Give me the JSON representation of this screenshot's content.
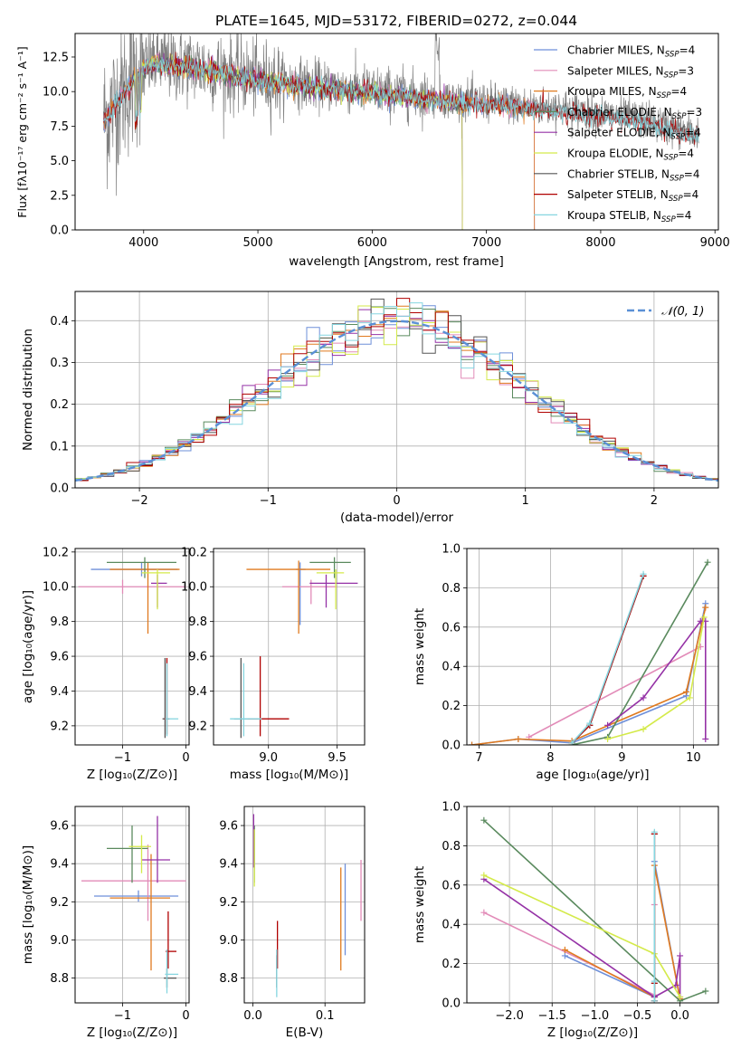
{
  "colors": {
    "chabrier_miles": "#6e8fd9",
    "salpeter_miles": "#e28bb8",
    "kroupa_miles": "#e07a1f",
    "chabrier_elodie": "#5a8a5e",
    "salpeter_elodie": "#9532a6",
    "kroupa_elodie": "#d4ea4a",
    "chabrier_stelib": "#555555",
    "salpeter_stelib": "#b00000",
    "kroupa_stelib": "#86d6e0",
    "spectrum": "#808080",
    "gaussian": "#5a90d6"
  },
  "chart_data": [
    {
      "id": "spectrum",
      "type": "line",
      "title": "PLATE=1645, MJD=53172, FIBERID=0272, z=0.044",
      "xlabel": "wavelength [Angstrom, rest frame]",
      "ylabel": "Flux [fλ10⁻¹⁷ erg cm⁻² s⁻¹ A⁻¹]",
      "xlim": [
        3400,
        9030
      ],
      "ylim": [
        0,
        14.2
      ],
      "xticks": [
        "4000",
        "5000",
        "6000",
        "7000",
        "8000",
        "9000"
      ],
      "yticks": [
        "0.0",
        "2.5",
        "5.0",
        "7.5",
        "10.0",
        "12.5"
      ],
      "legend_position": "top-right",
      "legend": [
        {
          "label": "Chabrier MILES, N",
          "n": "=4"
        },
        {
          "label": "Salpeter MILES, N",
          "n": "=3"
        },
        {
          "label": "Kroupa MILES, N",
          "n": "=4"
        },
        {
          "label": "Chabrier ELODIE, N",
          "n": "=3"
        },
        {
          "label": "Salpeter ELODIE, N",
          "n": "=4"
        },
        {
          "label": "Kroupa ELODIE, N",
          "n": "=4"
        },
        {
          "label": "Chabrier STELIB, N",
          "n": "=4"
        },
        {
          "label": "Salpeter STELIB, N",
          "n": "=4"
        },
        {
          "label": "Kroupa STELIB, N",
          "n": "=4"
        }
      ],
      "legend_subscript": "SSP",
      "continuum": {
        "x": [
          3650,
          3700,
          3800,
          3900,
          4000,
          4100,
          4200,
          4400,
          4600,
          4800,
          5000,
          5300,
          5600,
          6000,
          6400,
          6800,
          7200,
          7600,
          8000,
          8400,
          8800
        ],
        "y": [
          8.0,
          8.5,
          9.8,
          10.8,
          11.8,
          12.2,
          12.1,
          11.9,
          11.6,
          11.3,
          11.0,
          10.7,
          10.4,
          10.1,
          9.7,
          9.4,
          9.1,
          8.8,
          8.4,
          7.9,
          7.0
        ]
      }
    },
    {
      "id": "residuals",
      "type": "bar",
      "xlabel": "(data-model)/error",
      "ylabel": "Normed distribution",
      "xlim": [
        -2.5,
        2.5
      ],
      "ylim": [
        0,
        0.47
      ],
      "xticks": [
        "−2",
        "−1",
        "0",
        "1",
        "2"
      ],
      "yticks": [
        "0.0",
        "0.1",
        "0.2",
        "0.3",
        "0.4"
      ],
      "legend_label": "𝒩(0, 1)",
      "legend_position": "top-right",
      "bin_width": 0.1,
      "gaussian": {
        "mean": 0,
        "sigma": 1
      }
    },
    {
      "id": "age_vs_Z",
      "type": "scatter",
      "xlabel": "Z [log₁₀(Z/Z⊙)]",
      "ylabel": "age  [log₁₀(age/yr)]",
      "xlim": [
        -1.75,
        0.05
      ],
      "ylim": [
        9.09,
        10.22
      ],
      "xticks": [
        {
          "v": -1,
          "t": "−1"
        },
        {
          "v": 0,
          "t": "0"
        }
      ],
      "yticks": [
        {
          "v": 9.2,
          "t": "9.2"
        },
        {
          "v": 9.4,
          "t": "9.4"
        },
        {
          "v": 9.6,
          "t": "9.6"
        },
        {
          "v": 9.8,
          "t": "9.8"
        },
        {
          "v": 10.0,
          "t": "10.0"
        },
        {
          "v": 10.2,
          "t": "10.2"
        }
      ],
      "points": [
        {
          "c": "chabrier_miles",
          "x": -0.7,
          "y": 10.1,
          "xe": [
            -1.5,
            -0.13
          ],
          "ye": [
            10.06,
            10.14
          ]
        },
        {
          "c": "salpeter_miles",
          "x": -1.0,
          "y": 10.0,
          "xe": [
            -1.7,
            0.0
          ],
          "ye": [
            9.96,
            10.04
          ]
        },
        {
          "c": "kroupa_miles",
          "x": -0.6,
          "y": 10.1,
          "xe": [
            -1.2,
            -0.1
          ],
          "ye": [
            9.73,
            10.14
          ]
        },
        {
          "c": "chabrier_elodie",
          "x": -0.65,
          "y": 10.14,
          "xe": [
            -1.25,
            -0.15
          ],
          "ye": [
            10.05,
            10.17
          ]
        },
        {
          "c": "salpeter_elodie",
          "x": -0.45,
          "y": 10.02,
          "xe": [
            -0.55,
            -0.3
          ],
          "ye": [
            9.88,
            10.07
          ]
        },
        {
          "c": "kroupa_elodie",
          "x": -0.45,
          "y": 10.08,
          "xe": [
            -0.7,
            -0.25
          ],
          "ye": [
            9.87,
            10.1
          ]
        },
        {
          "c": "chabrier_stelib",
          "x": -0.33,
          "y": 9.24,
          "xe": [
            -0.37,
            -0.28
          ],
          "ye": [
            9.13,
            9.59
          ]
        },
        {
          "c": "salpeter_stelib",
          "x": -0.3,
          "y": 9.24,
          "xe": [
            -0.34,
            -0.26
          ],
          "ye": [
            9.15,
            9.59
          ]
        },
        {
          "c": "kroupa_stelib",
          "x": -0.3,
          "y": 9.24,
          "xe": [
            -0.33,
            -0.12
          ],
          "ye": [
            9.14,
            9.56
          ]
        }
      ]
    },
    {
      "id": "age_vs_mass",
      "type": "scatter",
      "xlabel": "mass [log₁₀(M/M⊙)]",
      "ylabel": "",
      "xlim": [
        8.6,
        9.7
      ],
      "ylim": [
        9.09,
        10.22
      ],
      "xticks": [
        {
          "v": 9.0,
          "t": "9.0"
        },
        {
          "v": 9.5,
          "t": "9.5"
        }
      ],
      "yticks": [
        {
          "v": 9.2,
          "t": "9.2"
        },
        {
          "v": 9.4,
          "t": "9.4"
        },
        {
          "v": 9.6,
          "t": "9.6"
        },
        {
          "v": 9.8,
          "t": "9.8"
        },
        {
          "v": 10.0,
          "t": "10.0"
        },
        {
          "v": 10.2,
          "t": "10.2"
        }
      ],
      "points": [
        {
          "c": "chabrier_miles",
          "x": 9.23,
          "y": 10.1,
          "xe": [
            9.2,
            9.27
          ],
          "ye": [
            9.78,
            10.14
          ]
        },
        {
          "c": "salpeter_miles",
          "x": 9.31,
          "y": 10.0,
          "xe": [
            9.1,
            9.5
          ],
          "ye": [
            9.9,
            10.04
          ]
        },
        {
          "c": "kroupa_miles",
          "x": 9.22,
          "y": 10.1,
          "xe": [
            8.84,
            9.45
          ],
          "ye": [
            9.73,
            10.15
          ]
        },
        {
          "c": "chabrier_elodie",
          "x": 9.48,
          "y": 10.14,
          "xe": [
            9.3,
            9.6
          ],
          "ye": [
            10.05,
            10.17
          ]
        },
        {
          "c": "salpeter_elodie",
          "x": 9.42,
          "y": 10.02,
          "xe": [
            9.3,
            9.65
          ],
          "ye": [
            9.88,
            10.07
          ]
        },
        {
          "c": "kroupa_elodie",
          "x": 9.49,
          "y": 10.08,
          "xe": [
            9.35,
            9.55
          ],
          "ye": [
            9.87,
            10.1
          ]
        },
        {
          "c": "chabrier_stelib",
          "x": 8.8,
          "y": 9.24,
          "xe": [
            8.75,
            8.85
          ],
          "ye": [
            9.13,
            9.59
          ]
        },
        {
          "c": "salpeter_stelib",
          "x": 8.94,
          "y": 9.24,
          "xe": [
            8.85,
            9.15
          ],
          "ye": [
            9.14,
            9.6
          ]
        },
        {
          "c": "kroupa_stelib",
          "x": 8.82,
          "y": 9.24,
          "xe": [
            8.72,
            8.95
          ],
          "ye": [
            9.14,
            9.56
          ]
        }
      ]
    },
    {
      "id": "weight_vs_age",
      "type": "line",
      "xlabel": "age  [log₁₀(age/yr)]",
      "ylabel": "mass weight",
      "xlim": [
        6.83,
        10.35
      ],
      "ylim": [
        0,
        1
      ],
      "xticks": [
        {
          "v": 7,
          "t": "7"
        },
        {
          "v": 8,
          "t": "8"
        },
        {
          "v": 9,
          "t": "9"
        },
        {
          "v": 10,
          "t": "10"
        }
      ],
      "yticks": [
        {
          "v": 0,
          "t": "0.0"
        },
        {
          "v": 0.2,
          "t": "0.2"
        },
        {
          "v": 0.4,
          "t": "0.4"
        },
        {
          "v": 0.6,
          "t": "0.6"
        },
        {
          "v": 0.8,
          "t": "0.8"
        },
        {
          "v": 1.0,
          "t": "1.0"
        }
      ],
      "series": [
        {
          "c": "chabrier_miles",
          "x": [
            6.9,
            7.55,
            8.3,
            9.9,
            10.17
          ],
          "y": [
            0.0,
            0.03,
            0.01,
            0.25,
            0.72
          ]
        },
        {
          "c": "salpeter_miles",
          "x": [
            7.7,
            10.1
          ],
          "y": [
            0.04,
            0.5
          ]
        },
        {
          "c": "kroupa_miles",
          "x": [
            6.9,
            7.55,
            8.3,
            9.9,
            10.17
          ],
          "y": [
            0.0,
            0.03,
            0.02,
            0.27,
            0.7
          ]
        },
        {
          "c": "chabrier_elodie",
          "x": [
            8.3,
            8.8,
            10.2
          ],
          "y": [
            0.0,
            0.04,
            0.93
          ]
        },
        {
          "c": "salpeter_elodie",
          "x": [
            8.8,
            9.3,
            10.1,
            10.17,
            10.17
          ],
          "y": [
            0.1,
            0.24,
            0.63,
            0.63,
            0.03
          ]
        },
        {
          "c": "kroupa_elodie",
          "x": [
            8.8,
            9.3,
            9.95,
            10.15
          ],
          "y": [
            0.03,
            0.08,
            0.24,
            0.65
          ]
        },
        {
          "c": "chabrier_stelib",
          "x": [
            8.3,
            8.55,
            9.3
          ],
          "y": [
            0.01,
            0.1,
            0.86
          ]
        },
        {
          "c": "salpeter_stelib",
          "x": [
            8.3,
            8.55,
            9.3
          ],
          "y": [
            0.01,
            0.1,
            0.86
          ]
        },
        {
          "c": "kroupa_stelib",
          "x": [
            8.3,
            8.55,
            9.3
          ],
          "y": [
            0.01,
            0.11,
            0.87
          ]
        }
      ]
    },
    {
      "id": "mass_vs_Z",
      "type": "scatter",
      "xlabel": "Z [log₁₀(Z/Z⊙)]",
      "ylabel": "mass [log₁₀(M/M⊙)]",
      "xlim": [
        -1.75,
        0.05
      ],
      "ylim": [
        8.67,
        9.7
      ],
      "xticks": [
        {
          "v": -1,
          "t": "−1"
        },
        {
          "v": 0,
          "t": "0"
        }
      ],
      "yticks": [
        {
          "v": 8.8,
          "t": "8.8"
        },
        {
          "v": 9.0,
          "t": "9.0"
        },
        {
          "v": 9.2,
          "t": "9.2"
        },
        {
          "v": 9.4,
          "t": "9.4"
        },
        {
          "v": 9.6,
          "t": "9.6"
        }
      ],
      "points": [
        {
          "c": "chabrier_miles",
          "x": -0.75,
          "y": 9.23,
          "xe": [
            -1.45,
            -0.12
          ],
          "ye": [
            9.2,
            9.26
          ]
        },
        {
          "c": "salpeter_miles",
          "x": -0.6,
          "y": 9.31,
          "xe": [
            -1.65,
            0.0
          ],
          "ye": [
            9.1,
            9.5
          ]
        },
        {
          "c": "kroupa_miles",
          "x": -0.55,
          "y": 9.22,
          "xe": [
            -1.2,
            -0.25
          ],
          "ye": [
            8.84,
            9.45
          ]
        },
        {
          "c": "chabrier_elodie",
          "x": -0.85,
          "y": 9.48,
          "xe": [
            -1.25,
            -0.6
          ],
          "ye": [
            9.3,
            9.6
          ]
        },
        {
          "c": "salpeter_elodie",
          "x": -0.45,
          "y": 9.42,
          "xe": [
            -0.7,
            -0.25
          ],
          "ye": [
            9.3,
            9.65
          ]
        },
        {
          "c": "kroupa_elodie",
          "x": -0.7,
          "y": 9.49,
          "xe": [
            -0.9,
            -0.55
          ],
          "ye": [
            9.35,
            9.55
          ]
        },
        {
          "c": "chabrier_stelib",
          "x": -0.3,
          "y": 8.8,
          "xe": [
            -0.35,
            -0.15
          ],
          "ye": [
            8.75,
            8.85
          ]
        },
        {
          "c": "salpeter_stelib",
          "x": -0.28,
          "y": 8.94,
          "xe": [
            -0.32,
            -0.15
          ],
          "ye": [
            8.85,
            9.15
          ]
        },
        {
          "c": "kroupa_stelib",
          "x": -0.3,
          "y": 8.82,
          "xe": [
            -0.33,
            -0.12
          ],
          "ye": [
            8.72,
            8.95
          ]
        }
      ]
    },
    {
      "id": "mass_vs_ebv",
      "type": "scatter",
      "xlabel": "E(B-V)",
      "ylabel": "",
      "xlim": [
        -0.012,
        0.155
      ],
      "ylim": [
        8.67,
        9.7
      ],
      "xticks": [
        {
          "v": 0.0,
          "t": "0.0"
        },
        {
          "v": 0.1,
          "t": "0.1"
        }
      ],
      "yticks": [
        {
          "v": 8.8,
          "t": "8.8"
        },
        {
          "v": 9.0,
          "t": "9.0"
        },
        {
          "v": 9.2,
          "t": "9.2"
        },
        {
          "v": 9.4,
          "t": "9.4"
        },
        {
          "v": 9.6,
          "t": "9.6"
        }
      ],
      "points": [
        {
          "c": "chabrier_miles",
          "x": 0.128,
          "y": 9.23,
          "ye": [
            8.92,
            9.4
          ]
        },
        {
          "c": "salpeter_miles",
          "x": 0.15,
          "y": 9.31,
          "ye": [
            9.1,
            9.42
          ]
        },
        {
          "c": "kroupa_miles",
          "x": 0.122,
          "y": 9.22,
          "ye": [
            8.84,
            9.38
          ]
        },
        {
          "c": "chabrier_elodie",
          "x": 0.002,
          "y": 9.48,
          "ye": [
            9.3,
            9.6
          ]
        },
        {
          "c": "salpeter_elodie",
          "x": 0.001,
          "y": 9.42,
          "ye": [
            9.38,
            9.66
          ]
        },
        {
          "c": "kroupa_elodie",
          "x": 0.002,
          "y": 9.49,
          "ye": [
            9.28,
            9.58
          ]
        },
        {
          "c": "chabrier_stelib",
          "x": 0.033,
          "y": 8.8,
          "ye": [
            8.75,
            8.92
          ]
        },
        {
          "c": "salpeter_stelib",
          "x": 0.034,
          "y": 8.94,
          "ye": [
            8.85,
            9.1
          ]
        },
        {
          "c": "kroupa_stelib",
          "x": 0.033,
          "y": 8.82,
          "ye": [
            8.7,
            8.95
          ]
        }
      ]
    },
    {
      "id": "weight_vs_Z",
      "type": "line",
      "xlabel": "Z [log₁₀(Z/Z⊙)]",
      "ylabel": "mass weight",
      "xlim": [
        -2.5,
        0.45
      ],
      "ylim": [
        0,
        1
      ],
      "xticks": [
        {
          "v": -2,
          "t": "−2.0"
        },
        {
          "v": -1.5,
          "t": "−1.5"
        },
        {
          "v": -1,
          "t": "−1.0"
        },
        {
          "v": -0.5,
          "t": "−0.5"
        },
        {
          "v": 0,
          "t": "0.0"
        }
      ],
      "yticks": [
        {
          "v": 0,
          "t": "0.0"
        },
        {
          "v": 0.2,
          "t": "0.2"
        },
        {
          "v": 0.4,
          "t": "0.4"
        },
        {
          "v": 0.6,
          "t": "0.6"
        },
        {
          "v": 0.8,
          "t": "0.8"
        },
        {
          "v": 1.0,
          "t": "1.0"
        }
      ],
      "series": [
        {
          "c": "chabrier_miles",
          "x": [
            -1.35,
            -0.3,
            -0.3,
            0.0
          ],
          "y": [
            0.24,
            0.03,
            0.72,
            0.02
          ]
        },
        {
          "c": "salpeter_miles",
          "x": [
            -2.3,
            -0.3,
            -0.3
          ],
          "y": [
            0.46,
            0.04,
            0.5
          ]
        },
        {
          "c": "kroupa_miles",
          "x": [
            -1.35,
            -0.3,
            -0.3,
            0.0
          ],
          "y": [
            0.27,
            0.03,
            0.7,
            0.02
          ]
        },
        {
          "c": "chabrier_elodie",
          "x": [
            -2.3,
            0.0,
            0.3
          ],
          "y": [
            0.93,
            0.01,
            0.06
          ]
        },
        {
          "c": "salpeter_elodie",
          "x": [
            -2.3,
            -0.3,
            -0.05,
            0.0,
            0.0
          ],
          "y": [
            0.63,
            0.03,
            0.09,
            0.24,
            0.03
          ]
        },
        {
          "c": "kroupa_elodie",
          "x": [
            -2.3,
            -0.3,
            0.0
          ],
          "y": [
            0.65,
            0.25,
            0.03
          ]
        },
        {
          "c": "chabrier_stelib",
          "x": [
            -0.3,
            -0.3,
            -0.3
          ],
          "y": [
            0.01,
            0.1,
            0.86
          ]
        },
        {
          "c": "salpeter_stelib",
          "x": [
            -0.3,
            -0.3,
            -0.3
          ],
          "y": [
            0.01,
            0.1,
            0.86
          ]
        },
        {
          "c": "kroupa_stelib",
          "x": [
            -0.3,
            -0.3,
            -0.3
          ],
          "y": [
            0.01,
            0.11,
            0.87
          ]
        }
      ]
    }
  ]
}
